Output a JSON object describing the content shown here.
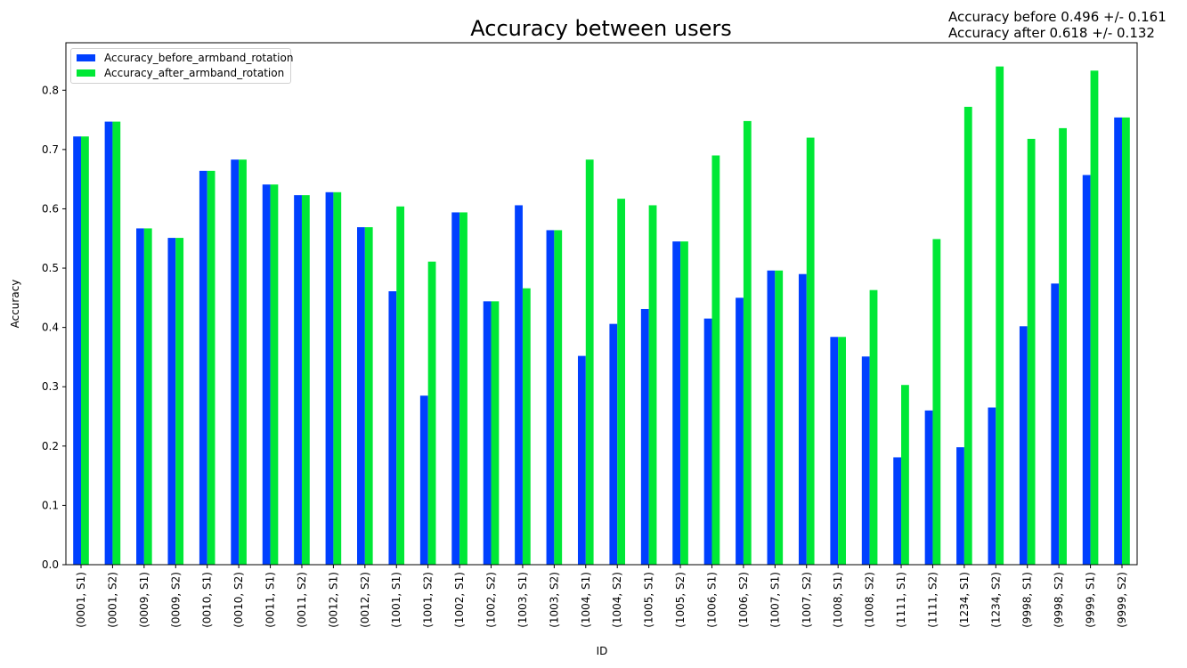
{
  "header": {
    "title": "Accuracy between users",
    "stats_before": "Accuracy before 0.496 +/- 0.161",
    "stats_after": "Accuracy after 0.618 +/- 0.132"
  },
  "colors": {
    "before": "#0040ff",
    "after": "#00e836",
    "axis": "#000000"
  },
  "chart_data": {
    "type": "bar",
    "title": "Accuracy between users",
    "xlabel": "ID",
    "ylabel": "Accuracy",
    "ylim": [
      0,
      0.88
    ],
    "yticks": [
      0.0,
      0.1,
      0.2,
      0.3,
      0.4,
      0.5,
      0.6,
      0.7,
      0.8
    ],
    "ytick_labels": [
      "0.0",
      "0.1",
      "0.2",
      "0.3",
      "0.4",
      "0.5",
      "0.6",
      "0.7",
      "0.8"
    ],
    "legend_position": "top-left",
    "grid": false,
    "categories": [
      "(0001, S1)",
      "(0001, S2)",
      "(0009, S1)",
      "(0009, S2)",
      "(0010, S1)",
      "(0010, S2)",
      "(0011, S1)",
      "(0011, S2)",
      "(0012, S1)",
      "(0012, S2)",
      "(1001, S1)",
      "(1001, S2)",
      "(1002, S1)",
      "(1002, S2)",
      "(1003, S1)",
      "(1003, S2)",
      "(1004, S1)",
      "(1004, S2)",
      "(1005, S1)",
      "(1005, S2)",
      "(1006, S1)",
      "(1006, S2)",
      "(1007, S1)",
      "(1007, S2)",
      "(1008, S1)",
      "(1008, S2)",
      "(1111, S1)",
      "(1111, S2)",
      "(1234, S1)",
      "(1234, S2)",
      "(9998, S1)",
      "(9998, S2)",
      "(9999, S1)",
      "(9999, S2)"
    ],
    "series": [
      {
        "name": "Accuracy_before_armband_rotation",
        "values": [
          0.722,
          0.747,
          0.567,
          0.551,
          0.664,
          0.683,
          0.641,
          0.623,
          0.628,
          0.569,
          0.461,
          0.285,
          0.594,
          0.444,
          0.606,
          0.564,
          0.352,
          0.406,
          0.431,
          0.545,
          0.415,
          0.45,
          0.496,
          0.49,
          0.384,
          0.351,
          0.181,
          0.26,
          0.198,
          0.265,
          0.402,
          0.474,
          0.657,
          0.754
        ]
      },
      {
        "name": "Accuracy_after_armband_rotation",
        "values": [
          0.722,
          0.747,
          0.567,
          0.551,
          0.664,
          0.683,
          0.641,
          0.623,
          0.628,
          0.569,
          0.604,
          0.511,
          0.594,
          0.444,
          0.466,
          0.564,
          0.683,
          0.617,
          0.606,
          0.545,
          0.69,
          0.748,
          0.496,
          0.72,
          0.384,
          0.463,
          0.303,
          0.549,
          0.772,
          0.84,
          0.718,
          0.736,
          0.833,
          0.754
        ]
      }
    ]
  }
}
